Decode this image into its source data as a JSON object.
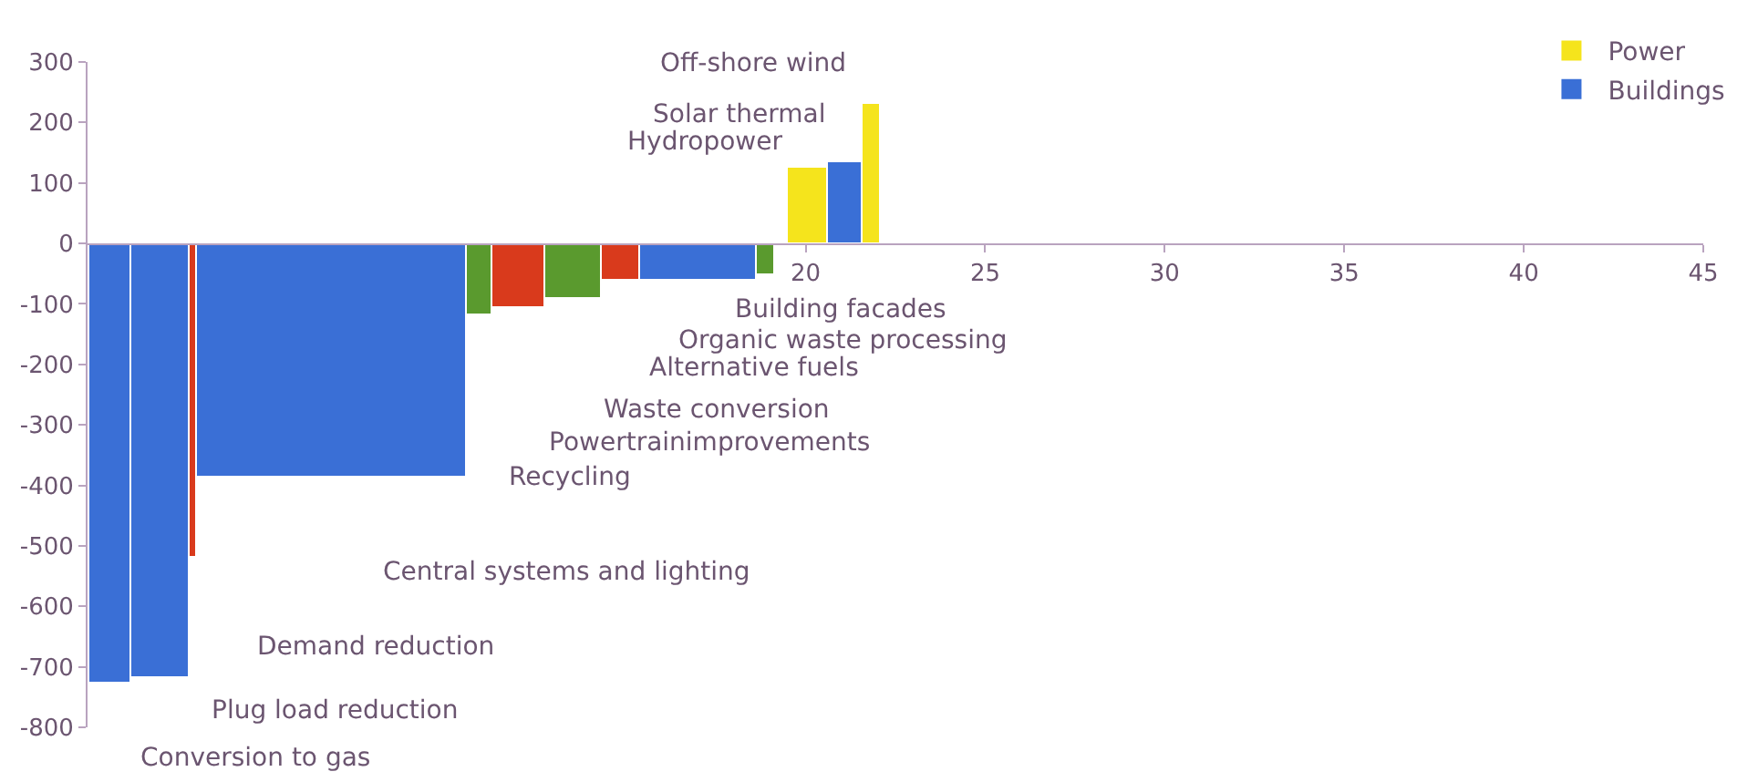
{
  "chart_data": {
    "type": "histogram",
    "bins": [
      0.05,
      1.2,
      2.85,
      3.05,
      10.55,
      11.25,
      12.75,
      14.3,
      15.4,
      18.65,
      19.15,
      19.5,
      20.6,
      21.6,
      22.1
    ],
    "series": [
      {
        "name": "Power",
        "color": "#f5e41c",
        "values": [
          null,
          null,
          null,
          null,
          null,
          null,
          null,
          null,
          null,
          null,
          null,
          124,
          null,
          230
        ]
      },
      {
        "name": "Buildings",
        "color": "#3a6fd6",
        "values": [
          -728,
          -720,
          null,
          -386,
          null,
          null,
          null,
          null,
          -61,
          null,
          null,
          null,
          135,
          null
        ]
      },
      {
        "color": "#d93a1c",
        "values": [
          null,
          null,
          -521,
          null,
          null,
          -107,
          null,
          -63,
          null,
          null,
          null,
          null,
          null,
          null
        ]
      },
      {
        "color": "#5a9a2e",
        "values": [
          null,
          null,
          null,
          null,
          -118,
          null,
          -93,
          null,
          null,
          -52,
          null,
          null,
          null,
          null
        ]
      }
    ],
    "xlim": [
      0,
      45
    ],
    "xticks": [
      20,
      25,
      30,
      35,
      40,
      45
    ],
    "ylim": [
      -800,
      300
    ],
    "yticks": [
      -800,
      -700,
      -600,
      -500,
      -400,
      -300,
      -200,
      -100,
      0,
      100,
      200,
      300
    ],
    "legend": "top right",
    "annotations": [
      "Off-shore wind",
      "Solar thermal",
      "Hydropower",
      "Building facades",
      "Organic waste processing",
      "Alternative fuels",
      "Waste conversion",
      "Powertrainimprovements",
      "Recycling",
      "Central systems and lighting",
      "Demand reduction",
      "Plug load reduction",
      "Conversion to gas"
    ]
  }
}
